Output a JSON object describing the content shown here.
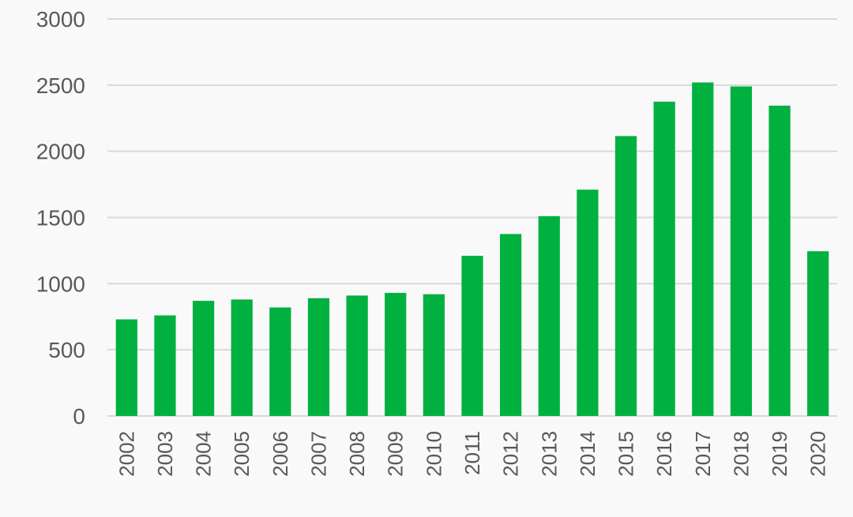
{
  "chart_data": {
    "type": "bar",
    "title": "",
    "xlabel": "",
    "ylabel": "",
    "categories": [
      "2002",
      "2003",
      "2004",
      "2005",
      "2006",
      "2007",
      "2008",
      "2009",
      "2010",
      "2011",
      "2012",
      "2013",
      "2014",
      "2015",
      "2016",
      "2017",
      "2018",
      "2019",
      "2020"
    ],
    "values": [
      730,
      760,
      870,
      880,
      820,
      890,
      910,
      930,
      920,
      1210,
      1375,
      1510,
      1710,
      2115,
      2375,
      2520,
      2490,
      2345,
      1245
    ],
    "ylim": [
      0,
      3000
    ],
    "yticks": [
      "0",
      "500",
      "1000",
      "1500",
      "2000",
      "2500",
      "3000"
    ],
    "grid": true,
    "legend": "none",
    "colors": {
      "bar": "#00b140",
      "grid": "#d9d9d9",
      "text": "#595959",
      "background": "#f9f9f9"
    }
  }
}
